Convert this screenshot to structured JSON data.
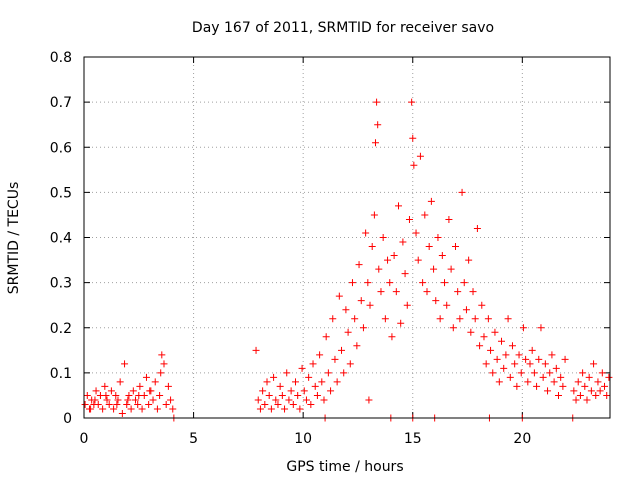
{
  "chart_data": {
    "type": "scatter",
    "title": "Day 167 of 2011, SRMTID for receiver savo",
    "xlabel": "GPS time / hours",
    "ylabel": "SRMTID / TECUs",
    "xlim": [
      0,
      24
    ],
    "ylim": [
      0,
      0.8
    ],
    "x_ticks": [
      0,
      5,
      10,
      15,
      20
    ],
    "x_tick_labels": [
      "0",
      "5",
      "10",
      "15",
      "20"
    ],
    "y_ticks": [
      0,
      0.1,
      0.2,
      0.3,
      0.4,
      0.5,
      0.6,
      0.7,
      0.8
    ],
    "y_tick_labels": [
      "0",
      "0.1",
      "0.2",
      "0.3",
      "0.4",
      "0.5",
      "0.6",
      "0.7",
      "0.8"
    ],
    "grid": true,
    "marker": "+",
    "color": "#ff0000",
    "series": [
      {
        "name": "SRMTID",
        "points": [
          [
            0.05,
            0.03
          ],
          [
            0.15,
            0.05
          ],
          [
            0.25,
            0.02
          ],
          [
            0.35,
            0.04
          ],
          [
            0.45,
            0.03
          ],
          [
            0.55,
            0.06
          ],
          [
            0.65,
            0.03
          ],
          [
            0.75,
            0.05
          ],
          [
            0.85,
            0.02
          ],
          [
            0.95,
            0.07
          ],
          [
            1.05,
            0.04
          ],
          [
            1.15,
            0.03
          ],
          [
            1.25,
            0.06
          ],
          [
            1.35,
            0.02
          ],
          [
            1.45,
            0.05
          ],
          [
            1.55,
            0.04
          ],
          [
            1.65,
            0.08
          ],
          [
            1.75,
            0.01
          ],
          [
            1.85,
            0.12
          ],
          [
            1.95,
            0.03
          ],
          [
            2.05,
            0.05
          ],
          [
            2.15,
            0.02
          ],
          [
            2.25,
            0.06
          ],
          [
            2.35,
            0.04
          ],
          [
            2.45,
            0.03
          ],
          [
            2.55,
            0.07
          ],
          [
            2.65,
            0.02
          ],
          [
            2.75,
            0.05
          ],
          [
            2.85,
            0.09
          ],
          [
            2.95,
            0.03
          ],
          [
            3.05,
            0.06
          ],
          [
            3.15,
            0.04
          ],
          [
            3.25,
            0.08
          ],
          [
            3.35,
            0.02
          ],
          [
            3.45,
            0.05
          ],
          [
            3.55,
            0.14
          ],
          [
            3.65,
            0.12
          ],
          [
            3.75,
            0.03
          ],
          [
            3.85,
            0.07
          ],
          [
            3.95,
            0.04
          ],
          [
            4.05,
            0.02
          ],
          [
            4.1,
            0.0
          ],
          [
            0.5,
            0.04
          ],
          [
            1.0,
            0.05
          ],
          [
            1.5,
            0.03
          ],
          [
            2.0,
            0.04
          ],
          [
            2.5,
            0.05
          ],
          [
            3.0,
            0.06
          ],
          [
            3.5,
            0.1
          ],
          [
            0.3,
            0.02
          ],
          [
            7.85,
            0.15
          ],
          [
            7.95,
            0.04
          ],
          [
            8.05,
            0.02
          ],
          [
            8.15,
            0.06
          ],
          [
            8.25,
            0.03
          ],
          [
            8.35,
            0.08
          ],
          [
            8.45,
            0.05
          ],
          [
            8.55,
            0.02
          ],
          [
            8.65,
            0.09
          ],
          [
            8.75,
            0.04
          ],
          [
            8.85,
            0.03
          ],
          [
            8.95,
            0.07
          ],
          [
            9.05,
            0.05
          ],
          [
            9.15,
            0.02
          ],
          [
            9.25,
            0.1
          ],
          [
            9.35,
            0.04
          ],
          [
            9.45,
            0.06
          ],
          [
            9.55,
            0.03
          ],
          [
            9.65,
            0.08
          ],
          [
            9.75,
            0.05
          ],
          [
            9.85,
            0.02
          ],
          [
            9.95,
            0.11
          ],
          [
            10.05,
            0.06
          ],
          [
            10.15,
            0.04
          ],
          [
            10.25,
            0.09
          ],
          [
            10.35,
            0.03
          ],
          [
            10.45,
            0.12
          ],
          [
            10.55,
            0.07
          ],
          [
            10.65,
            0.05
          ],
          [
            10.75,
            0.14
          ],
          [
            10.85,
            0.08
          ],
          [
            10.95,
            0.04
          ],
          [
            11.05,
            0.18
          ],
          [
            11.15,
            0.1
          ],
          [
            11.25,
            0.06
          ],
          [
            11.35,
            0.22
          ],
          [
            11.45,
            0.13
          ],
          [
            11.55,
            0.08
          ],
          [
            11.65,
            0.27
          ],
          [
            11.75,
            0.15
          ],
          [
            11.85,
            0.1
          ],
          [
            11.95,
            0.24
          ],
          [
            12.05,
            0.19
          ],
          [
            12.15,
            0.12
          ],
          [
            12.25,
            0.3
          ],
          [
            12.35,
            0.22
          ],
          [
            12.45,
            0.16
          ],
          [
            12.55,
            0.34
          ],
          [
            12.65,
            0.26
          ],
          [
            12.75,
            0.2
          ],
          [
            12.85,
            0.41
          ],
          [
            12.95,
            0.3
          ],
          [
            13.05,
            0.25
          ],
          [
            13.15,
            0.38
          ],
          [
            13.25,
            0.45
          ],
          [
            13.3,
            0.61
          ],
          [
            13.35,
            0.7
          ],
          [
            13.4,
            0.65
          ],
          [
            13.45,
            0.33
          ],
          [
            13.55,
            0.28
          ],
          [
            13.65,
            0.4
          ],
          [
            13.75,
            0.22
          ],
          [
            13.85,
            0.35
          ],
          [
            13.95,
            0.3
          ],
          [
            14.05,
            0.18
          ],
          [
            14.15,
            0.36
          ],
          [
            14.25,
            0.28
          ],
          [
            14.35,
            0.47
          ],
          [
            14.45,
            0.21
          ],
          [
            14.55,
            0.39
          ],
          [
            14.65,
            0.32
          ],
          [
            14.75,
            0.25
          ],
          [
            14.85,
            0.44
          ],
          [
            14.95,
            0.7
          ],
          [
            15.0,
            0.62
          ],
          [
            15.05,
            0.56
          ],
          [
            15.15,
            0.41
          ],
          [
            15.25,
            0.35
          ],
          [
            15.35,
            0.58
          ],
          [
            15.45,
            0.3
          ],
          [
            15.55,
            0.45
          ],
          [
            15.65,
            0.28
          ],
          [
            15.75,
            0.38
          ],
          [
            15.85,
            0.48
          ],
          [
            15.95,
            0.33
          ],
          [
            16.05,
            0.26
          ],
          [
            16.15,
            0.4
          ],
          [
            16.25,
            0.22
          ],
          [
            16.35,
            0.36
          ],
          [
            16.45,
            0.3
          ],
          [
            16.55,
            0.25
          ],
          [
            16.65,
            0.44
          ],
          [
            16.75,
            0.33
          ],
          [
            16.85,
            0.2
          ],
          [
            16.95,
            0.38
          ],
          [
            17.05,
            0.28
          ],
          [
            17.15,
            0.22
          ],
          [
            17.25,
            0.5
          ],
          [
            17.35,
            0.3
          ],
          [
            17.45,
            0.24
          ],
          [
            17.55,
            0.35
          ],
          [
            17.65,
            0.19
          ],
          [
            17.75,
            0.28
          ],
          [
            17.85,
            0.22
          ],
          [
            17.95,
            0.42
          ],
          [
            18.05,
            0.16
          ],
          [
            18.15,
            0.25
          ],
          [
            18.25,
            0.18
          ],
          [
            18.35,
            0.12
          ],
          [
            18.45,
            0.22
          ],
          [
            18.55,
            0.15
          ],
          [
            18.65,
            0.1
          ],
          [
            18.75,
            0.19
          ],
          [
            18.85,
            0.13
          ],
          [
            18.95,
            0.08
          ],
          [
            19.05,
            0.17
          ],
          [
            19.15,
            0.11
          ],
          [
            19.25,
            0.14
          ],
          [
            19.35,
            0.22
          ],
          [
            19.45,
            0.09
          ],
          [
            19.55,
            0.16
          ],
          [
            19.65,
            0.12
          ],
          [
            19.75,
            0.07
          ],
          [
            19.85,
            0.14
          ],
          [
            19.95,
            0.1
          ],
          [
            20.05,
            0.2
          ],
          [
            20.15,
            0.13
          ],
          [
            20.25,
            0.08
          ],
          [
            20.35,
            0.12
          ],
          [
            20.45,
            0.15
          ],
          [
            20.55,
            0.1
          ],
          [
            20.65,
            0.07
          ],
          [
            20.75,
            0.13
          ],
          [
            20.85,
            0.2
          ],
          [
            20.95,
            0.09
          ],
          [
            21.05,
            0.12
          ],
          [
            21.15,
            0.06
          ],
          [
            21.25,
            0.1
          ],
          [
            21.35,
            0.14
          ],
          [
            21.45,
            0.08
          ],
          [
            21.55,
            0.11
          ],
          [
            21.65,
            0.05
          ],
          [
            21.75,
            0.09
          ],
          [
            21.85,
            0.07
          ],
          [
            21.95,
            0.13
          ],
          [
            22.35,
            0.06
          ],
          [
            22.45,
            0.04
          ],
          [
            22.55,
            0.08
          ],
          [
            22.65,
            0.05
          ],
          [
            22.75,
            0.1
          ],
          [
            22.85,
            0.07
          ],
          [
            22.95,
            0.04
          ],
          [
            23.05,
            0.09
          ],
          [
            23.15,
            0.06
          ],
          [
            23.25,
            0.12
          ],
          [
            23.35,
            0.05
          ],
          [
            23.45,
            0.08
          ],
          [
            23.55,
            0.06
          ],
          [
            23.65,
            0.1
          ],
          [
            23.75,
            0.07
          ],
          [
            23.85,
            0.05
          ],
          [
            23.95,
            0.09
          ],
          [
            14.0,
            0.0
          ],
          [
            15.0,
            0.0
          ],
          [
            16.0,
            0.0
          ],
          [
            18.5,
            0.0
          ],
          [
            22.3,
            0.0
          ],
          [
            11.0,
            0.0
          ],
          [
            13.0,
            0.04
          ],
          [
            20.0,
            0.0
          ]
        ]
      }
    ]
  }
}
